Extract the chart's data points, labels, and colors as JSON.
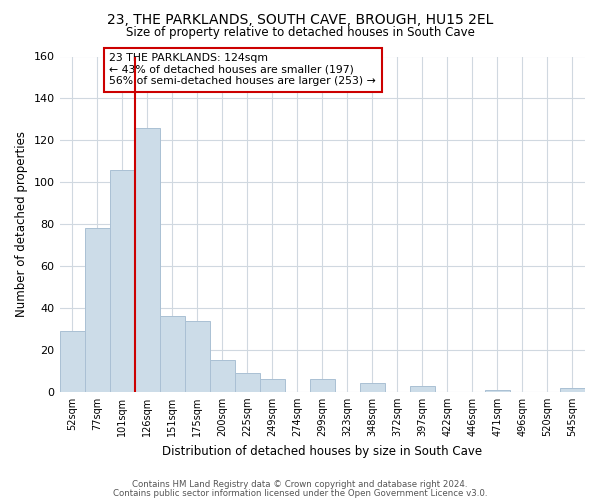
{
  "title": "23, THE PARKLANDS, SOUTH CAVE, BROUGH, HU15 2EL",
  "subtitle": "Size of property relative to detached houses in South Cave",
  "xlabel": "Distribution of detached houses by size in South Cave",
  "ylabel": "Number of detached properties",
  "bar_labels": [
    "52sqm",
    "77sqm",
    "101sqm",
    "126sqm",
    "151sqm",
    "175sqm",
    "200sqm",
    "225sqm",
    "249sqm",
    "274sqm",
    "299sqm",
    "323sqm",
    "348sqm",
    "372sqm",
    "397sqm",
    "422sqm",
    "446sqm",
    "471sqm",
    "496sqm",
    "520sqm",
    "545sqm"
  ],
  "bar_heights": [
    29,
    78,
    106,
    126,
    36,
    34,
    15,
    9,
    6,
    0,
    6,
    0,
    4,
    0,
    3,
    0,
    0,
    1,
    0,
    0,
    2
  ],
  "bar_color": "#ccdce8",
  "bar_edgecolor": "#aac0d4",
  "ylim": [
    0,
    160
  ],
  "yticks": [
    0,
    20,
    40,
    60,
    80,
    100,
    120,
    140,
    160
  ],
  "property_label": "23 THE PARKLANDS: 124sqm",
  "annotation_line1": "← 43% of detached houses are smaller (197)",
  "annotation_line2": "56% of semi-detached houses are larger (253) →",
  "vline_x_index": 3,
  "vline_color": "#cc0000",
  "footer1": "Contains HM Land Registry data © Crown copyright and database right 2024.",
  "footer2": "Contains public sector information licensed under the Open Government Licence v3.0.",
  "background_color": "#ffffff",
  "grid_color": "#d0d8e0"
}
